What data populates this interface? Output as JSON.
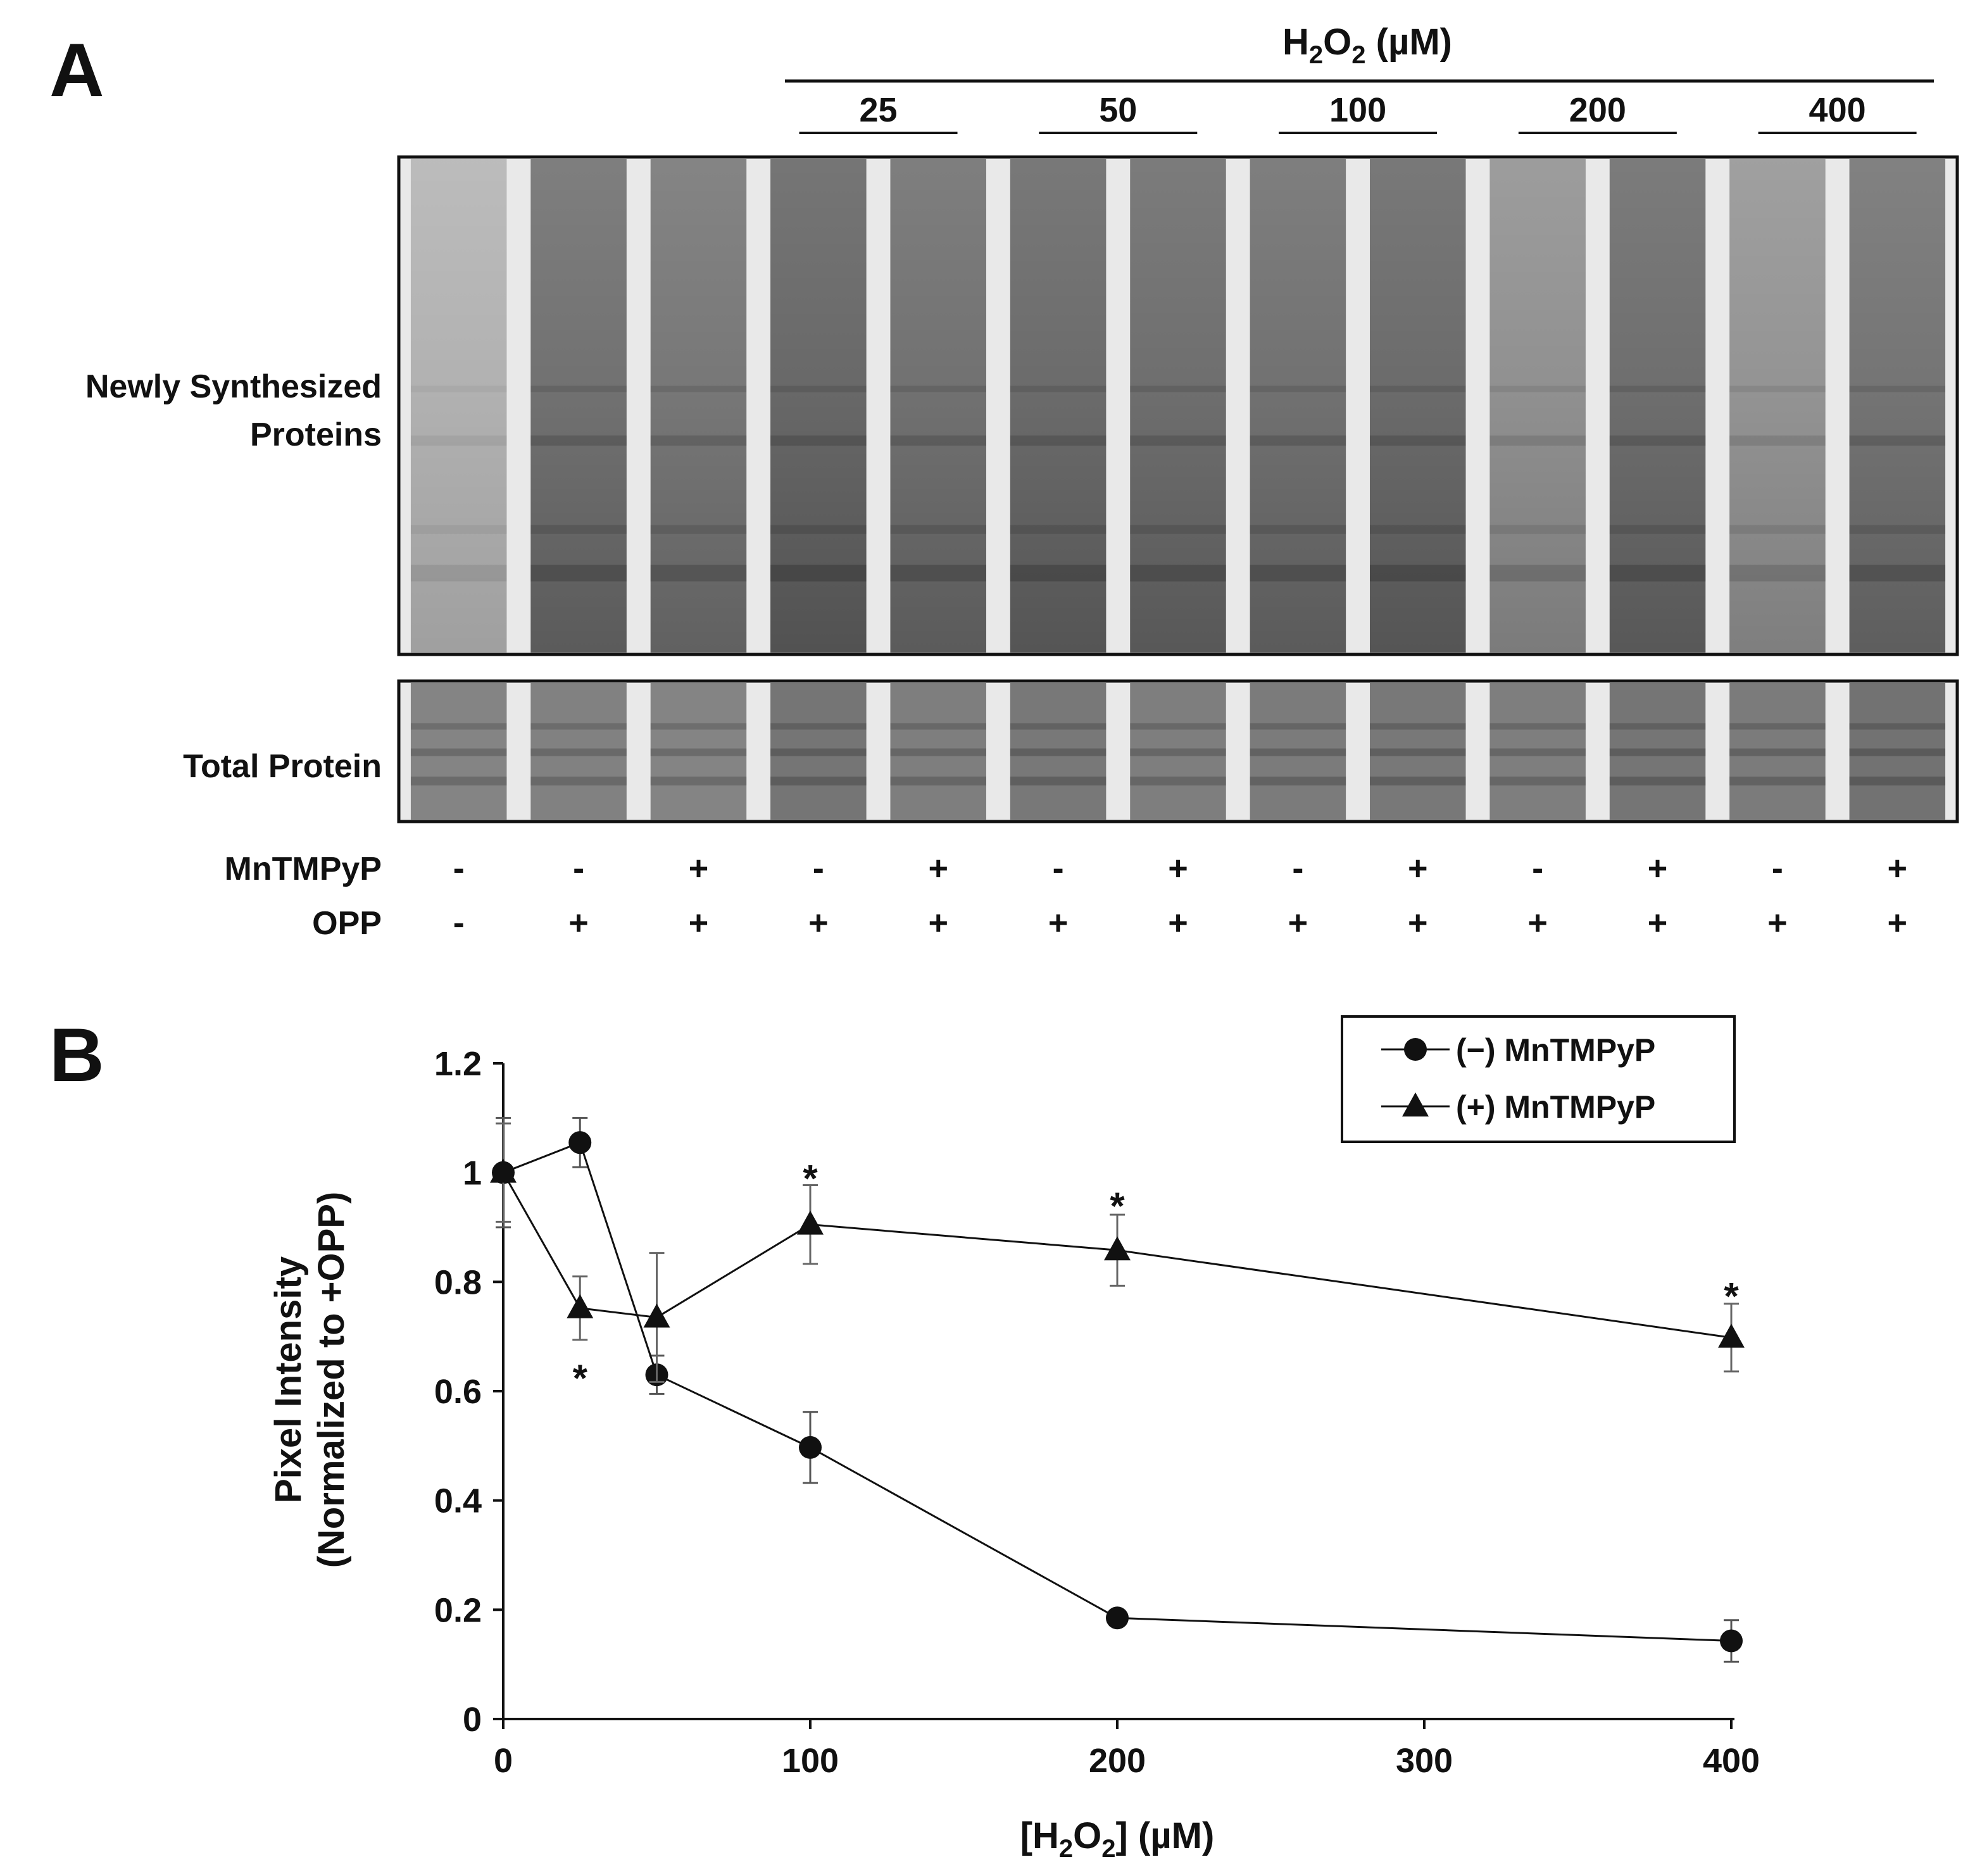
{
  "panel_a": {
    "letter": "A",
    "treatment_header": {
      "prefix": "H",
      "sub1": "2",
      "mid": "O",
      "sub2": "2",
      "suffix": " (µM)"
    },
    "dose_groups": [
      "25",
      "50",
      "100",
      "200",
      "400"
    ],
    "blot_labels": {
      "newly_line1": "Newly Synthesized",
      "newly_line2": "Proteins",
      "total": "Total Protein"
    },
    "row_labels": {
      "mntmpyp": "MnTMPyP",
      "opp": "OPP"
    },
    "mntmpyp_signs": [
      "-",
      "-",
      "+",
      "-",
      "+",
      "-",
      "+",
      "-",
      "+",
      "-",
      "+",
      "-",
      "+"
    ],
    "opp_signs": [
      "-",
      "+",
      "+",
      "+",
      "+",
      "+",
      "+",
      "+",
      "+",
      "+",
      "+",
      "+",
      "+"
    ],
    "lane_intensity": [
      0.22,
      0.62,
      0.58,
      0.68,
      0.62,
      0.66,
      0.64,
      0.62,
      0.66,
      0.42,
      0.64,
      0.4,
      0.6
    ],
    "total_intensity": [
      0.62,
      0.64,
      0.62,
      0.72,
      0.66,
      0.7,
      0.66,
      0.68,
      0.7,
      0.66,
      0.72,
      0.68,
      0.74
    ],
    "colors": {
      "gel_bg": "#d8d8d8",
      "band": "#222222",
      "gap": "#f2f2f2"
    }
  },
  "chart_data": {
    "panel_letter": "B",
    "type": "line",
    "title": "",
    "xlabel": {
      "prefix": "[H",
      "sub1": "2",
      "mid": "O",
      "sub2": "2",
      "suffix": "] (µM)"
    },
    "ylabel": [
      "Pixel Intensity",
      "(Normalized to +OPP)"
    ],
    "xlim": [
      0,
      400
    ],
    "ylim": [
      0,
      1.2
    ],
    "xticks": [
      0,
      100,
      200,
      300,
      400
    ],
    "xtick_labels": [
      "0",
      "100",
      "200",
      "300",
      "400"
    ],
    "yticks": [
      0,
      0.2,
      0.4,
      0.6,
      0.8,
      1.0,
      1.2
    ],
    "ytick_labels": [
      "0",
      "0.2",
      "0.4",
      "0.6",
      "0.8",
      "1",
      "1.2"
    ],
    "grid": false,
    "legend_position": "top-right",
    "series": [
      {
        "name": "(−) MnTMPyP",
        "marker": "circle",
        "x": [
          0,
          25,
          50,
          100,
          200,
          400
        ],
        "y": [
          1.0,
          1.055,
          0.63,
          0.497,
          0.185,
          0.143
        ],
        "err": [
          0.1,
          0.045,
          0.035,
          0.065,
          0.012,
          0.038
        ]
      },
      {
        "name": "(+) MnTMPyP",
        "marker": "triangle",
        "x": [
          0,
          25,
          50,
          100,
          200,
          400
        ],
        "y": [
          1.0,
          0.752,
          0.735,
          0.905,
          0.858,
          0.698
        ],
        "err": [
          0.09,
          0.058,
          0.118,
          0.072,
          0.065,
          0.062
        ]
      }
    ],
    "annotations": [
      {
        "x": 25,
        "y": 0.635,
        "text": "*"
      },
      {
        "x": 100,
        "y": 1.0,
        "text": "*"
      },
      {
        "x": 200,
        "y": 0.95,
        "text": "*"
      },
      {
        "x": 400,
        "y": 0.785,
        "text": "*"
      }
    ]
  }
}
